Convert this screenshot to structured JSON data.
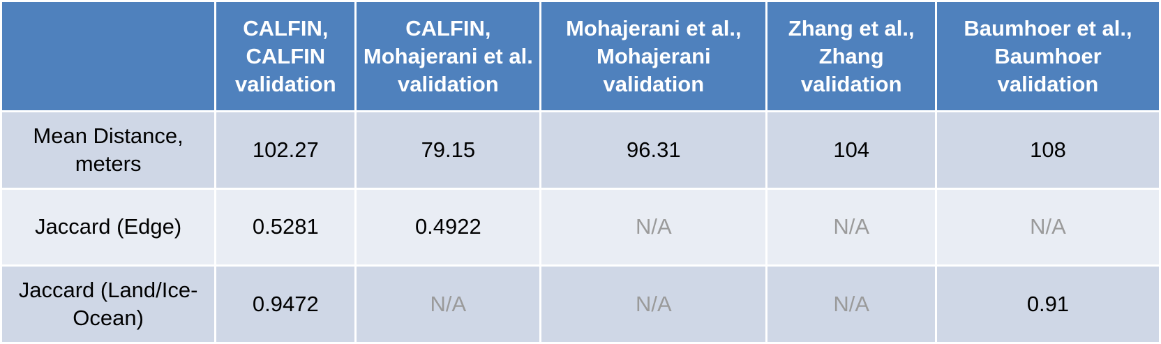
{
  "table": {
    "columns": [
      {
        "label": ""
      },
      {
        "label": "CALFIN, CALFIN validation"
      },
      {
        "label": "CALFIN, Mohajerani et al. validation"
      },
      {
        "label": "Mohajerani et al., Mohajerani validation"
      },
      {
        "label": "Zhang et al., Zhang validation"
      },
      {
        "label": "Baumhoer et al., Baumhoer validation"
      }
    ],
    "rows": [
      {
        "metric": "Mean Distance, meters",
        "values": [
          "102.27",
          "79.15",
          "96.31",
          "104",
          "108"
        ]
      },
      {
        "metric": "Jaccard (Edge)",
        "values": [
          "0.5281",
          "0.4922",
          "N/A",
          "N/A",
          "N/A"
        ]
      },
      {
        "metric": "Jaccard (Land/Ice-Ocean)",
        "values": [
          "0.9472",
          "N/A",
          "N/A",
          "N/A",
          "0.91"
        ]
      }
    ]
  },
  "colors": {
    "header_background": "#4f81bd",
    "header_text": "#ffffff",
    "row_dark": "#cfd7e6",
    "row_light": "#e9edf4",
    "na_text": "#9a9a9a"
  }
}
